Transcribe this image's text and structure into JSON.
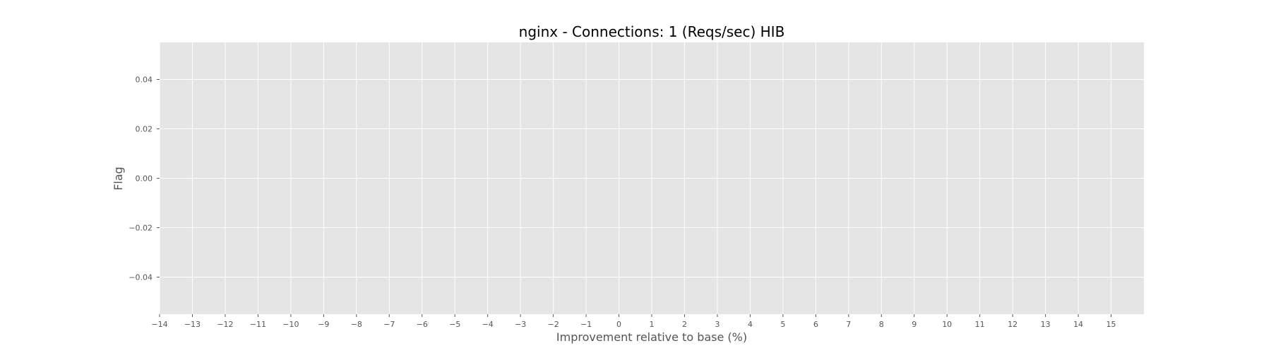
{
  "chart_data": {
    "type": "scatter",
    "title": "nginx - Connections: 1 (Reqs/sec) HIB",
    "xlabel": "Improvement relative to base (%)",
    "ylabel": "Flag",
    "xlim": [
      -14,
      16
    ],
    "ylim": [
      -0.055,
      0.055
    ],
    "xticks": [
      -14,
      -13,
      -12,
      -11,
      -10,
      -9,
      -8,
      -7,
      -6,
      -5,
      -4,
      -3,
      -2,
      -1,
      0,
      1,
      2,
      3,
      4,
      5,
      6,
      7,
      8,
      9,
      10,
      11,
      12,
      13,
      14,
      15
    ],
    "xtick_labels": [
      "−14",
      "−13",
      "−12",
      "−11",
      "−10",
      "−9",
      "−8",
      "−7",
      "−6",
      "−5",
      "−4",
      "−3",
      "−2",
      "−1",
      "0",
      "1",
      "2",
      "3",
      "4",
      "5",
      "6",
      "7",
      "8",
      "9",
      "10",
      "11",
      "12",
      "13",
      "14",
      "15"
    ],
    "yticks": [
      0.04,
      0.02,
      0.0,
      -0.02,
      -0.04
    ],
    "ytick_labels": [
      "0.04",
      "0.02",
      "0.00",
      "−0.02",
      "−0.04"
    ],
    "series": [],
    "grid": true,
    "colors": {
      "plot_background": "#e5e5e5",
      "grid": "#ffffff",
      "tick_text": "#555555",
      "title_text": "#000000"
    }
  }
}
